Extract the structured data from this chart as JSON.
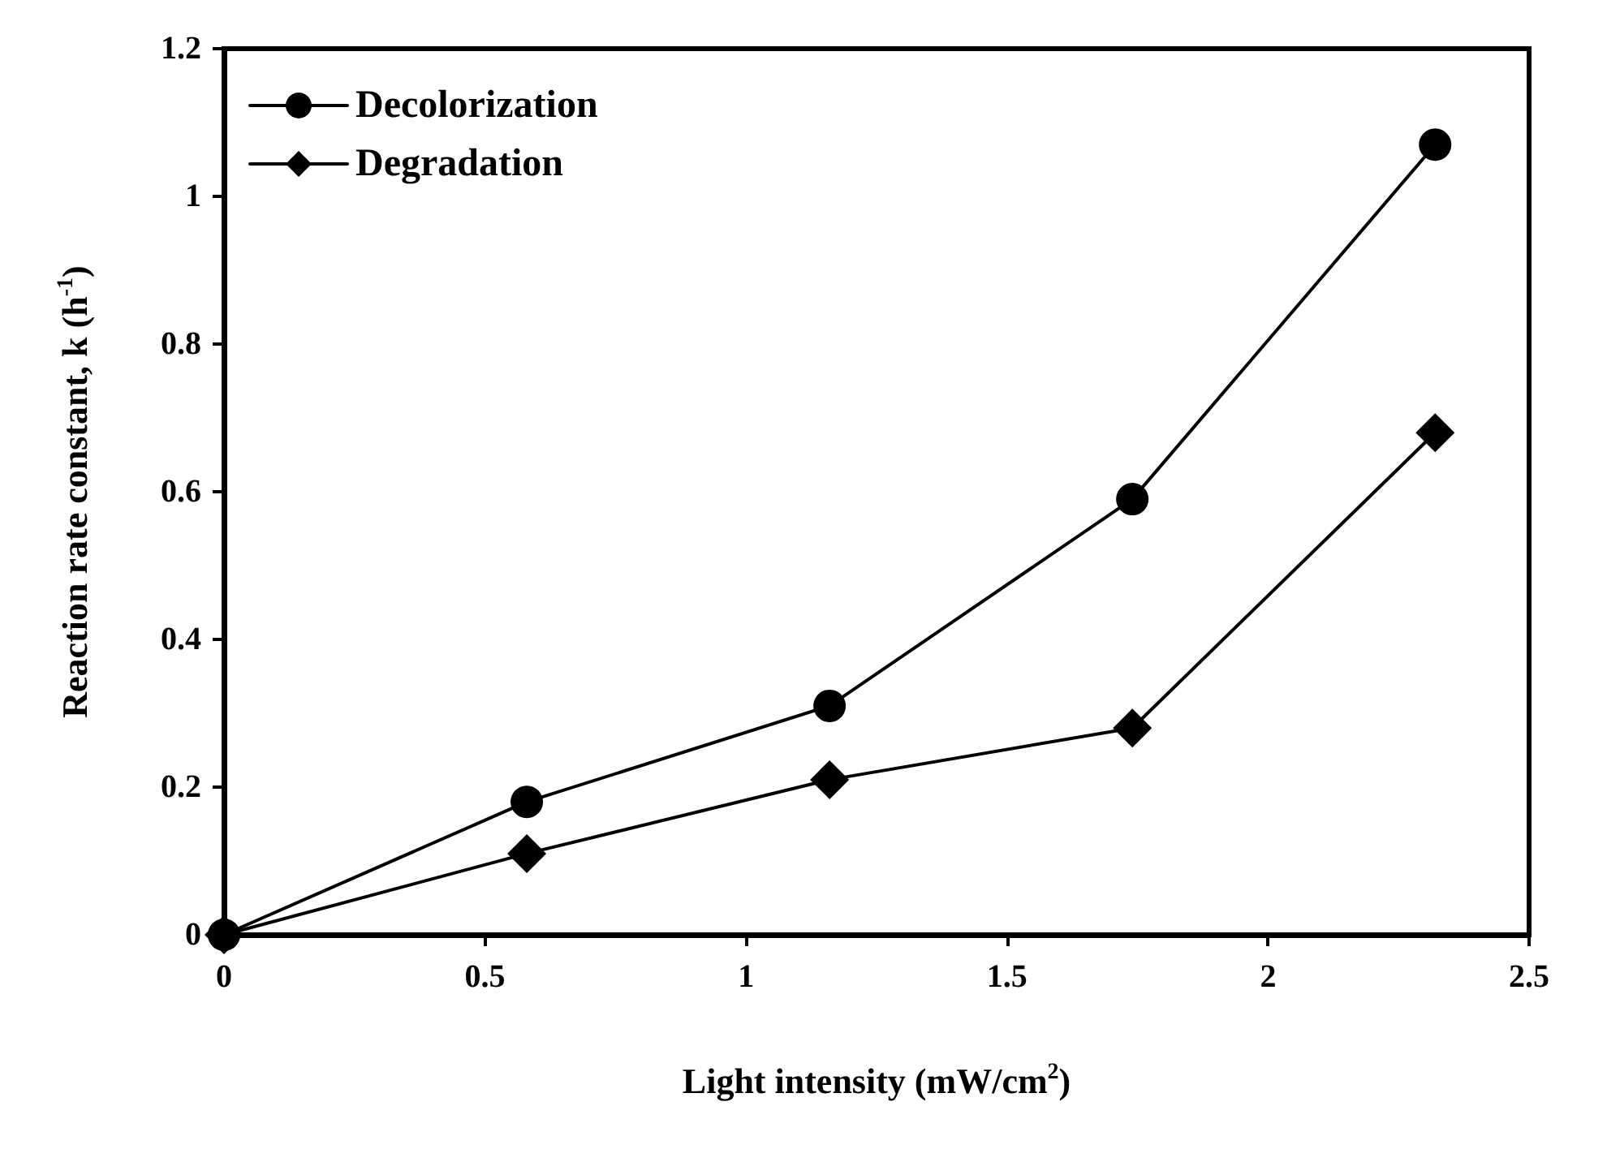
{
  "chart_data": {
    "type": "line",
    "xlabel": "Light intensity (mW/cm$^{2}$)",
    "ylabel": "Reaction rate constant, k (h$^{-1}$)",
    "x": [
      0,
      0.58,
      1.16,
      1.74,
      2.32
    ],
    "series": [
      {
        "name": "Decolorization",
        "color": "#000000",
        "marker": "circle",
        "values": [
          0,
          0.18,
          0.31,
          0.59,
          1.07
        ]
      },
      {
        "name": "Degradation",
        "color": "#000000",
        "marker": "diamond",
        "values": [
          0,
          0.11,
          0.21,
          0.28,
          0.68
        ]
      }
    ],
    "xlim": [
      0,
      2.5
    ],
    "xticks": [
      0,
      0.5,
      1,
      1.5,
      2,
      2.5
    ],
    "ylim": [
      0,
      1.2
    ],
    "yticks": [
      0,
      0.2,
      0.4,
      0.6,
      0.8,
      1,
      1.2
    ],
    "grid": false,
    "legend": "top left",
    "line_style": "solid"
  }
}
